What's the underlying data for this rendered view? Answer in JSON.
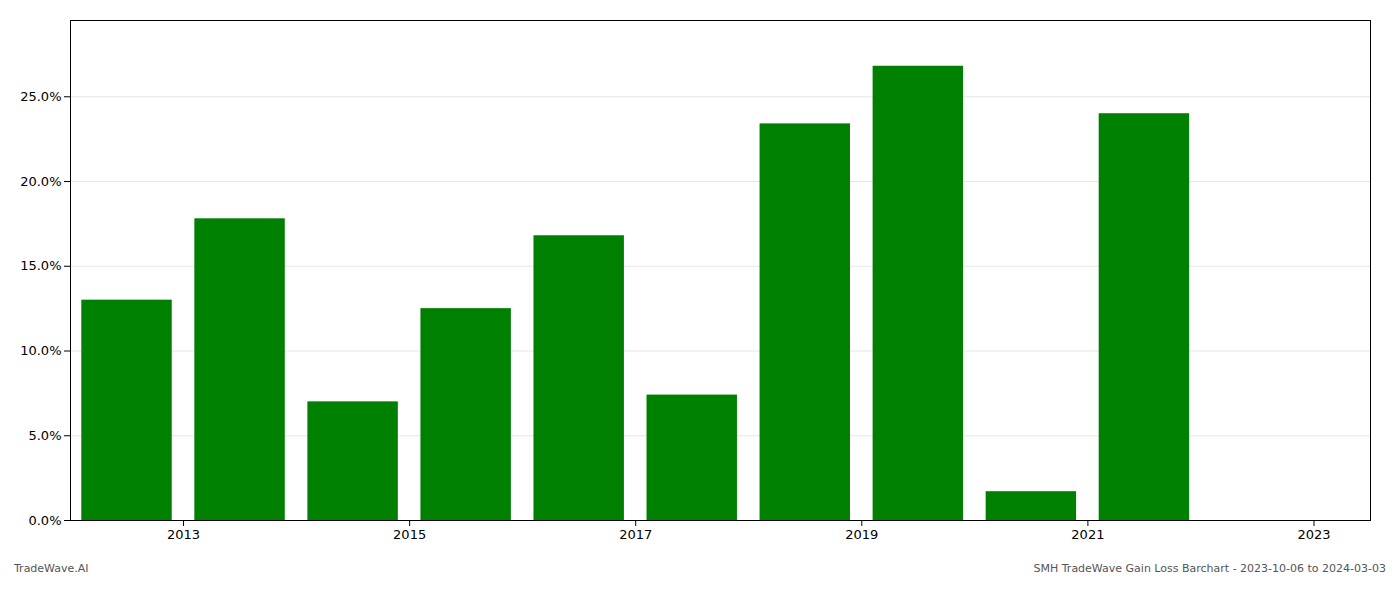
{
  "chart_data": {
    "type": "bar",
    "x": [
      2013,
      2014,
      2015,
      2016,
      2017,
      2018,
      2019,
      2020,
      2021,
      2022
    ],
    "values": [
      0.13,
      0.178,
      0.07,
      0.125,
      0.168,
      0.074,
      0.234,
      0.268,
      0.017,
      0.24
    ],
    "color": "#008000",
    "xlim": [
      2012.5,
      2024.0
    ],
    "xticks": [
      {
        "value": 2013.5,
        "label": "2013"
      },
      {
        "value": 2015.5,
        "label": "2015"
      },
      {
        "value": 2017.5,
        "label": "2017"
      },
      {
        "value": 2019.5,
        "label": "2019"
      },
      {
        "value": 2021.5,
        "label": "2021"
      },
      {
        "value": 2023.5,
        "label": "2023"
      }
    ],
    "ylim": [
      0,
      0.295
    ],
    "yticks": [
      {
        "value": 0,
        "label": "0.0%"
      },
      {
        "value": 0.05,
        "label": "5.0%"
      },
      {
        "value": 0.1,
        "label": "10.0%"
      },
      {
        "value": 0.15,
        "label": "15.0%"
      },
      {
        "value": 0.2,
        "label": "20.0%"
      },
      {
        "value": 0.25,
        "label": "25.0%"
      }
    ],
    "grid": true,
    "annotations": [
      {
        "text": "TradeWave.AI"
      },
      {
        "text": "SMH TradeWave Gain Loss Barchart - 2023-10-06 to 2024-03-03"
      }
    ]
  }
}
